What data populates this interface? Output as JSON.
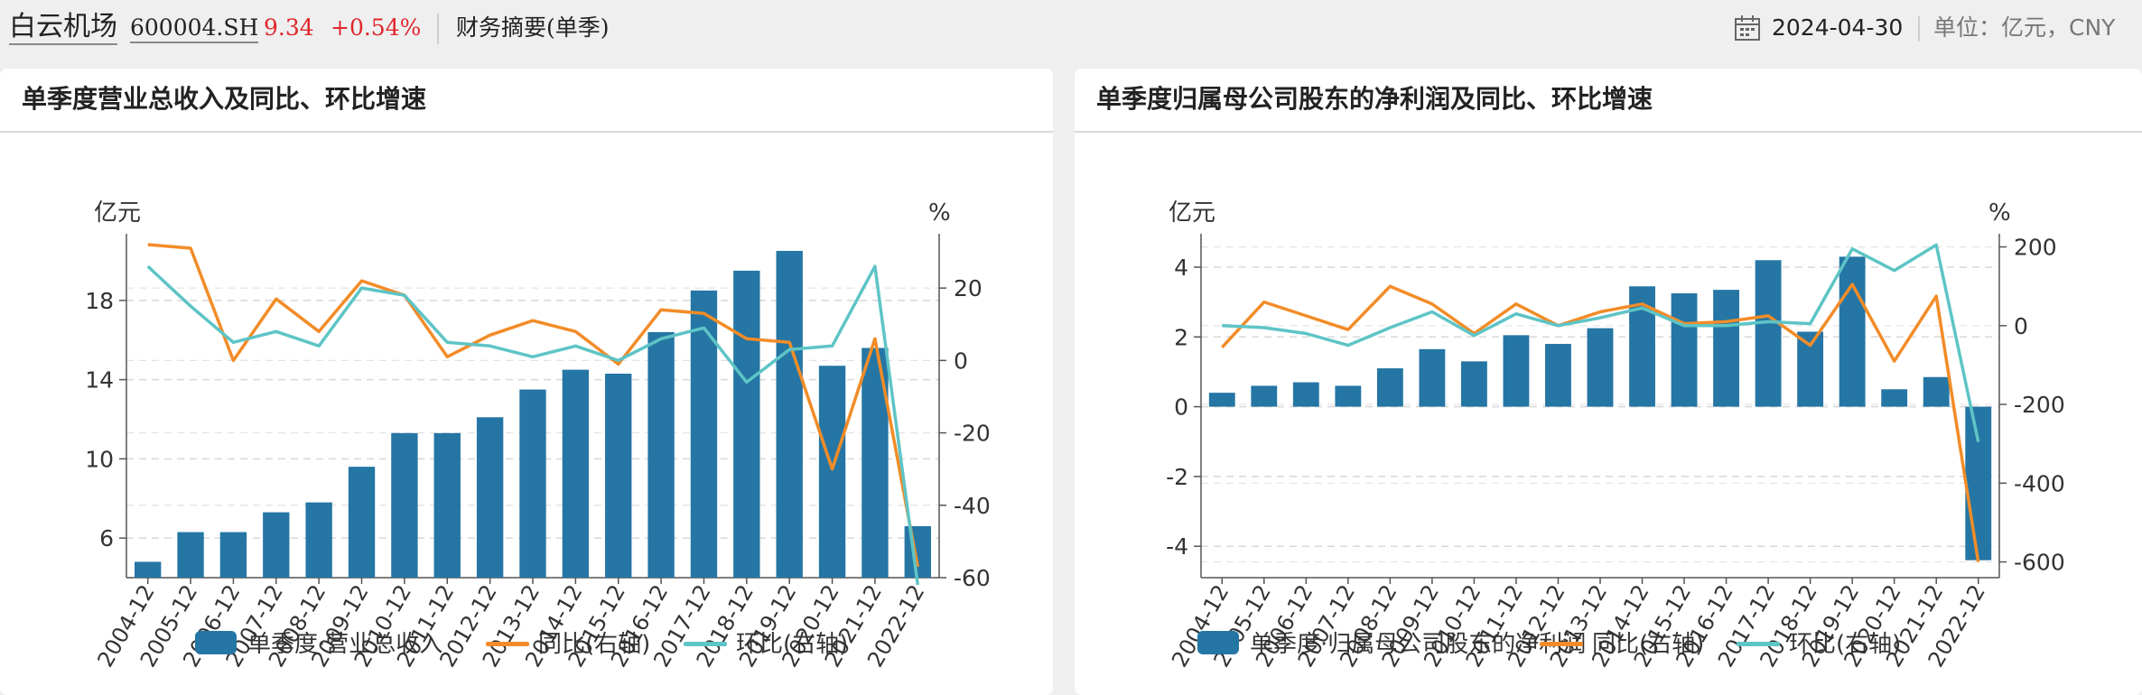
{
  "header": {
    "stock_name": "白云机场",
    "stock_code": "600004.SH",
    "price": "9.34",
    "change": "+0.54%",
    "page_title": "财务摘要(单季)",
    "date": "2024-04-30",
    "unit": "单位：亿元，CNY"
  },
  "colors": {
    "bar": "#2576a4",
    "yoy": "#f28c28",
    "qoq": "#5ec4c6",
    "up": "#e0262b"
  },
  "panels": [
    {
      "title": "单季度营业总收入及同比、环比增速"
    },
    {
      "title": "单季度归属母公司股东的净利润及同比、环比增速"
    }
  ],
  "chart_data": [
    {
      "type": "bar",
      "title": "单季度营业总收入及同比、环比增速",
      "ylabel": "亿元",
      "y2label": "%",
      "categories": [
        "2004-12",
        "2005-12",
        "2006-12",
        "2007-12",
        "2008-12",
        "2009-12",
        "2010-12",
        "2011-12",
        "2012-12",
        "2013-12",
        "2014-12",
        "2015-12",
        "2016-12",
        "2017-12",
        "2018-12",
        "2019-12",
        "2020-12",
        "2021-12",
        "2022-12"
      ],
      "ylim": [
        4,
        21
      ],
      "yticks": [
        6,
        10,
        14,
        18
      ],
      "y2lim": [
        -60,
        33
      ],
      "y2ticks": [
        -60,
        -40,
        -20,
        0,
        20
      ],
      "series": [
        {
          "name": "单季度·营业总收入",
          "kind": "bar",
          "axis": "left",
          "values": [
            4.8,
            6.3,
            6.3,
            7.3,
            7.8,
            9.6,
            11.3,
            11.3,
            12.1,
            13.5,
            14.5,
            14.3,
            16.4,
            18.5,
            19.5,
            20.5,
            14.7,
            15.6,
            6.6
          ]
        },
        {
          "name": "同比(右轴)",
          "kind": "line",
          "axis": "right",
          "values": [
            32,
            31,
            0,
            17,
            8,
            22,
            18,
            1,
            7,
            11,
            8,
            -1,
            14,
            13,
            6,
            5,
            -30,
            6,
            -57
          ]
        },
        {
          "name": "环比(右轴)",
          "kind": "line",
          "axis": "right",
          "values": [
            26,
            15,
            5,
            8,
            4,
            20,
            18,
            5,
            4,
            1,
            4,
            0,
            6,
            9,
            -6,
            3,
            4,
            26,
            -62
          ]
        }
      ],
      "legend": "bottom"
    },
    {
      "type": "bar",
      "title": "单季度归属母公司股东的净利润及同比、环比增速",
      "ylabel": "亿元",
      "y2label": "%",
      "categories": [
        "2004-12",
        "2005-12",
        "2006-12",
        "2007-12",
        "2008-12",
        "2009-12",
        "2010-12",
        "2011-12",
        "2012-12",
        "2013-12",
        "2014-12",
        "2015-12",
        "2016-12",
        "2017-12",
        "2018-12",
        "2019-12",
        "2020-12",
        "2021-12",
        "2022-12"
      ],
      "ylim": [
        -4.9,
        4.75
      ],
      "yticks": [
        -4,
        -2,
        0,
        2,
        4
      ],
      "y2lim": [
        -640,
        215
      ],
      "y2ticks": [
        -600,
        -400,
        -200,
        0,
        200
      ],
      "series": [
        {
          "name": "单季度·归属母公司股东的净利润",
          "kind": "bar",
          "axis": "left",
          "values": [
            0.4,
            0.6,
            0.7,
            0.6,
            1.1,
            1.65,
            1.3,
            2.05,
            1.8,
            2.25,
            3.45,
            3.25,
            3.35,
            4.2,
            2.15,
            4.3,
            0.5,
            0.85,
            -4.4
          ]
        },
        {
          "name": "同比(右轴)",
          "kind": "line",
          "axis": "right",
          "values": [
            -55,
            60,
            25,
            -10,
            100,
            55,
            -20,
            55,
            0,
            35,
            55,
            5,
            10,
            25,
            -50,
            105,
            -90,
            75,
            -600
          ]
        },
        {
          "name": "环比(右轴)",
          "kind": "line",
          "axis": "right",
          "values": [
            0,
            -5,
            -20,
            -50,
            -5,
            35,
            -25,
            30,
            0,
            20,
            45,
            0,
            0,
            10,
            5,
            195,
            140,
            205,
            -295
          ]
        }
      ],
      "legend": "bottom"
    }
  ]
}
